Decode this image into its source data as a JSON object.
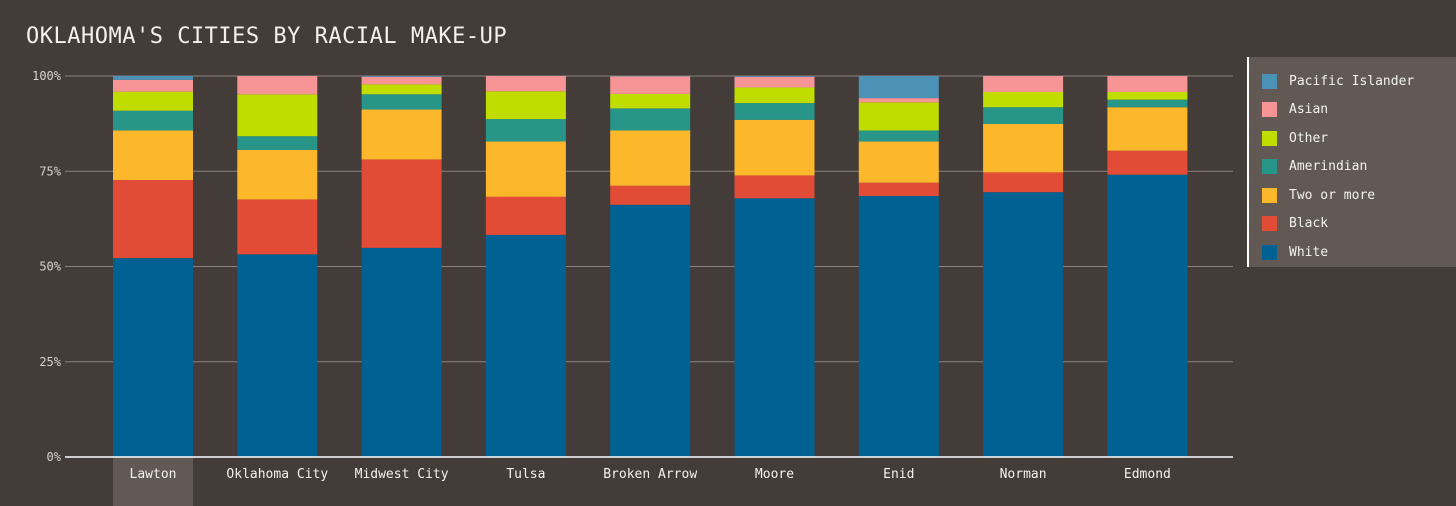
{
  "chart_data": {
    "type": "bar",
    "stacked": true,
    "title": "OKLAHOMA'S CITIES BY RACIAL MAKE-UP",
    "categories": [
      "Lawton",
      "Oklahoma City",
      "Midwest City",
      "Tulsa",
      "Broken Arrow",
      "Moore",
      "Enid",
      "Norman",
      "Edmond"
    ],
    "highlighted_category": "Lawton",
    "y_ticks": [
      "0%",
      "25%",
      "50%",
      "75%",
      "100%"
    ],
    "ylim": [
      0,
      100
    ],
    "grid": true,
    "legend_position": "right",
    "series": [
      {
        "name": "White",
        "color": "#006192",
        "values": [
          52.2,
          53.2,
          54.9,
          58.3,
          66.2,
          67.9,
          68.5,
          69.5,
          74.1
        ]
      },
      {
        "name": "Black",
        "color": "#e24b36",
        "values": [
          20.5,
          14.4,
          23.2,
          10.0,
          5.0,
          6.0,
          3.5,
          5.2,
          6.3
        ]
      },
      {
        "name": "Two or more",
        "color": "#fdb72a",
        "values": [
          13.0,
          13.0,
          13.1,
          14.5,
          14.5,
          14.6,
          10.8,
          12.7,
          11.4
        ]
      },
      {
        "name": "Amerindian",
        "color": "#279689",
        "values": [
          5.2,
          3.6,
          4.0,
          5.9,
          5.8,
          4.4,
          2.9,
          4.4,
          2.0
        ]
      },
      {
        "name": "Other",
        "color": "#c1dd00",
        "values": [
          5.0,
          11.0,
          2.6,
          7.3,
          3.8,
          4.1,
          7.4,
          4.0,
          2.0
        ]
      },
      {
        "name": "Asian",
        "color": "#f79496",
        "values": [
          3.1,
          4.8,
          2.0,
          4.0,
          4.6,
          2.8,
          1.1,
          4.2,
          4.2
        ]
      },
      {
        "name": "Pacific Islander",
        "color": "#4b92b6",
        "values": [
          1.0,
          0.0,
          0.2,
          0.0,
          0.1,
          0.2,
          5.8,
          0.0,
          0.0
        ]
      }
    ],
    "legend_order": [
      "Pacific Islander",
      "Asian",
      "Other",
      "Amerindian",
      "Two or more",
      "Black",
      "White"
    ]
  }
}
